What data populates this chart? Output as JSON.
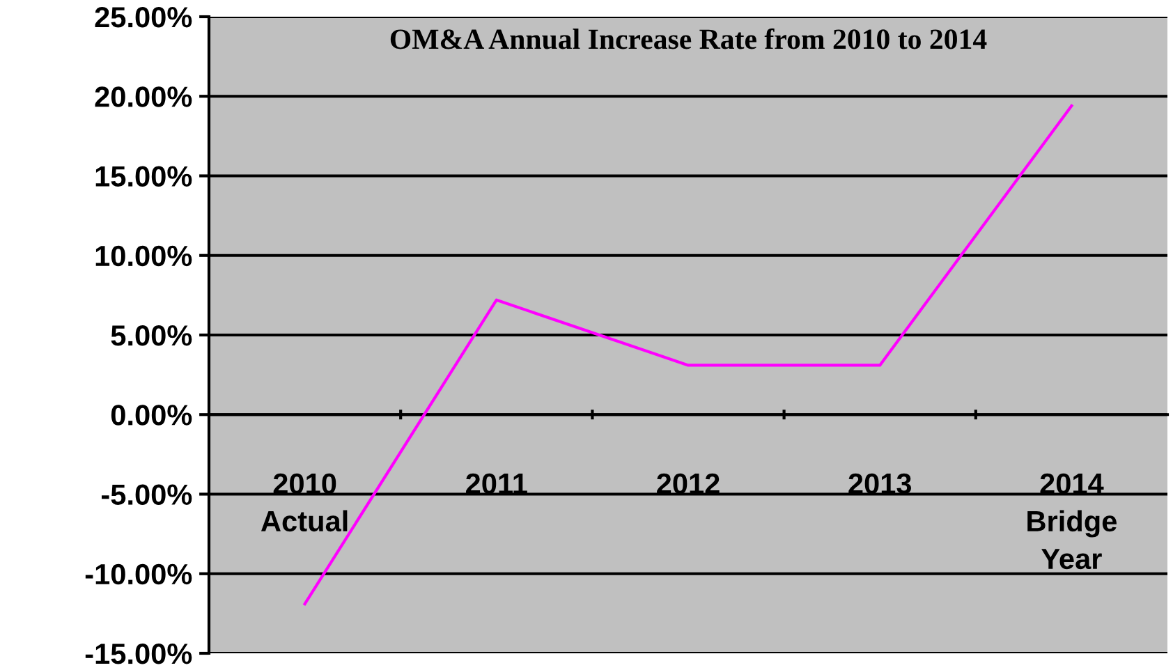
{
  "chart_data": {
    "type": "line",
    "title": "OM&A Annual Increase Rate from 2010 to 2014",
    "categories": [
      "2010\nActual",
      "2011",
      "2012",
      "2013",
      "2014\nBridge\nYear"
    ],
    "series": [
      {
        "color": "#ff00ff",
        "values": [
          -11.9,
          7.2,
          3.1,
          3.1,
          19.4
        ]
      }
    ],
    "ylim": [
      -15,
      25
    ],
    "yticks": [
      {
        "value": -15,
        "label": "-15.00%"
      },
      {
        "value": -10,
        "label": "-10.00%"
      },
      {
        "value": -5,
        "label": "-5.00%"
      },
      {
        "value": 0,
        "label": "0.00%"
      },
      {
        "value": 5,
        "label": "5.00%"
      },
      {
        "value": 10,
        "label": "10.00%"
      },
      {
        "value": 15,
        "label": "15.00%"
      },
      {
        "value": 20,
        "label": "20.00%"
      },
      {
        "value": 25,
        "label": "25.00%"
      }
    ],
    "grid": "y",
    "legend": false,
    "marker": "none",
    "line_style": "solid"
  }
}
